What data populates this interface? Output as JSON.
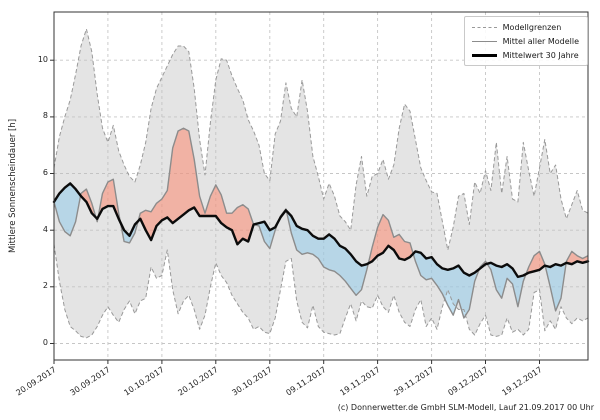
{
  "figure": {
    "y_axis_label": "Mittlere Sonnenscheindauer [h]",
    "caption": "(c) Donnerwetter.de GmbH SLM-Modell, Lauf 21.09.2017 00 Uhr",
    "legend": {
      "items": [
        {
          "label": "Modellgrenzen",
          "style": "dashed-gray"
        },
        {
          "label": "Mittel aller Modelle",
          "style": "solid-gray"
        },
        {
          "label": "Mittelwert 30 Jahre",
          "style": "solid-black-thick"
        }
      ]
    }
  },
  "chart_data": {
    "type": "line",
    "title": "",
    "xlabel": "",
    "ylabel": "Mittlere Sonnenscheindauer [h]",
    "ylim": [
      -0.6,
      11.7
    ],
    "yticks": [
      0,
      2,
      4,
      6,
      8,
      10
    ],
    "grid": true,
    "legend_position": "top-right",
    "x_days": 100,
    "x_start_date": "20.09.2017",
    "x_tick_days": [
      0,
      10,
      20,
      30,
      40,
      50,
      60,
      70,
      80,
      90
    ],
    "x_tick_labels": [
      "20.09.2017",
      "30.09.2017",
      "10.10.2017",
      "20.10.2017",
      "30.10.2017",
      "09.11.2017",
      "19.11.2017",
      "29.11.2017",
      "09.12.2017",
      "19.12.2017"
    ],
    "fills": {
      "envelope_color": "#e3e3e3",
      "above_mean_color": "#f2b3a5",
      "below_mean_color": "#b7d7e8"
    },
    "series": [
      {
        "name": "Modellgrenzen (obere Grenze)",
        "role": "upper_bound",
        "color": "#999999",
        "style": "dashed",
        "values": [
          6.2,
          7.3,
          8.0,
          8.6,
          9.5,
          10.5,
          11.1,
          10.3,
          8.8,
          7.6,
          7.1,
          7.7,
          6.8,
          6.3,
          5.9,
          5.7,
          6.3,
          7.1,
          8.3,
          9.0,
          9.4,
          9.8,
          10.2,
          10.5,
          10.5,
          10.3,
          9.0,
          7.2,
          5.95,
          7.8,
          9.3,
          10.05,
          10.0,
          9.45,
          9.0,
          8.6,
          7.9,
          7.5,
          7.0,
          6.0,
          5.75,
          7.4,
          7.85,
          9.2,
          8.3,
          8.0,
          9.3,
          8.2,
          6.6,
          5.9,
          5.1,
          5.65,
          5.2,
          4.5,
          4.3,
          4.0,
          5.6,
          6.6,
          5.2,
          5.9,
          6.0,
          6.5,
          5.8,
          6.3,
          7.6,
          8.45,
          8.2,
          7.2,
          6.2,
          5.75,
          5.35,
          5.3,
          4.3,
          3.3,
          4.1,
          5.2,
          5.3,
          4.2,
          5.7,
          5.3,
          6.1,
          5.4,
          7.1,
          5.3,
          6.6,
          5.1,
          5.0,
          7.1,
          6.1,
          5.2,
          6.2,
          7.2,
          6.0,
          6.3,
          5.1,
          4.4,
          4.9,
          5.4,
          4.7,
          4.6
        ]
      },
      {
        "name": "Modellgrenzen (untere Grenze)",
        "role": "lower_bound",
        "color": "#999999",
        "style": "dashed",
        "values": [
          3.5,
          2.2,
          1.2,
          0.6,
          0.45,
          0.25,
          0.2,
          0.3,
          0.6,
          1.0,
          1.3,
          1.0,
          0.75,
          1.2,
          1.5,
          1.05,
          1.5,
          1.6,
          2.7,
          2.3,
          2.4,
          3.3,
          1.9,
          1.05,
          1.5,
          1.7,
          1.2,
          0.5,
          1.0,
          2.0,
          2.85,
          2.4,
          2.15,
          1.7,
          1.4,
          1.1,
          0.9,
          0.5,
          0.6,
          0.4,
          0.35,
          0.9,
          1.9,
          2.9,
          3.0,
          1.5,
          0.75,
          0.55,
          1.35,
          0.6,
          0.4,
          0.35,
          0.3,
          0.35,
          0.9,
          1.4,
          0.8,
          1.5,
          1.3,
          1.25,
          1.7,
          1.3,
          1.1,
          1.7,
          1.1,
          0.75,
          0.6,
          1.2,
          1.55,
          0.6,
          0.9,
          0.5,
          1.3,
          1.9,
          1.4,
          1.2,
          1.2,
          0.5,
          0.3,
          0.7,
          1.0,
          0.3,
          0.25,
          0.3,
          0.9,
          0.4,
          0.5,
          0.3,
          0.5,
          1.8,
          1.9,
          0.45,
          0.8,
          0.5,
          1.3,
          0.9,
          0.7,
          0.9,
          0.8,
          0.9
        ]
      },
      {
        "name": "Mittel aller Modelle",
        "role": "model_mean",
        "color": "#8c8c8c",
        "style": "solid",
        "values": [
          5.0,
          4.3,
          3.95,
          3.8,
          4.3,
          5.3,
          5.45,
          4.95,
          4.3,
          5.3,
          5.7,
          5.8,
          4.6,
          3.6,
          3.55,
          3.9,
          4.6,
          4.7,
          4.65,
          4.95,
          5.1,
          5.4,
          6.9,
          7.5,
          7.6,
          7.5,
          6.5,
          5.2,
          4.6,
          5.2,
          5.6,
          5.25,
          4.6,
          4.6,
          4.8,
          4.9,
          4.75,
          4.2,
          4.15,
          3.6,
          3.35,
          4.0,
          4.5,
          4.75,
          3.9,
          3.3,
          3.15,
          3.2,
          3.15,
          3.0,
          2.7,
          2.6,
          2.55,
          2.4,
          2.2,
          1.95,
          1.7,
          1.9,
          2.6,
          3.4,
          4.1,
          4.55,
          4.35,
          3.75,
          3.85,
          3.6,
          3.55,
          2.9,
          2.4,
          2.25,
          2.3,
          2.05,
          1.75,
          1.35,
          1.0,
          1.55,
          0.9,
          1.2,
          2.2,
          2.7,
          2.9,
          2.6,
          1.9,
          1.6,
          2.3,
          2.1,
          1.3,
          2.2,
          2.7,
          3.1,
          3.25,
          2.8,
          2.0,
          1.15,
          1.6,
          2.9,
          3.25,
          3.1,
          3.0,
          3.1
        ]
      },
      {
        "name": "Mittelwert 30 Jahre",
        "role": "mean_30y",
        "color": "#000000",
        "style": "solid-thick",
        "values": [
          5.0,
          5.3,
          5.5,
          5.65,
          5.45,
          5.2,
          5.0,
          4.6,
          4.4,
          4.75,
          4.85,
          4.85,
          4.4,
          4.0,
          3.8,
          4.2,
          4.4,
          4.0,
          3.65,
          4.15,
          4.35,
          4.45,
          4.25,
          4.4,
          4.55,
          4.7,
          4.8,
          4.5,
          4.5,
          4.5,
          4.5,
          4.25,
          4.1,
          4.0,
          3.5,
          3.7,
          3.6,
          4.2,
          4.25,
          4.3,
          4.0,
          4.1,
          4.45,
          4.7,
          4.5,
          4.15,
          4.05,
          4.0,
          3.8,
          3.7,
          3.7,
          3.85,
          3.7,
          3.45,
          3.35,
          3.15,
          2.9,
          2.75,
          2.8,
          2.9,
          3.1,
          3.2,
          3.45,
          3.3,
          3.0,
          2.95,
          3.05,
          3.25,
          3.2,
          3.0,
          3.05,
          2.8,
          2.65,
          2.6,
          2.65,
          2.75,
          2.5,
          2.4,
          2.5,
          2.65,
          2.8,
          2.85,
          2.75,
          2.7,
          2.8,
          2.65,
          2.35,
          2.4,
          2.5,
          2.55,
          2.6,
          2.75,
          2.7,
          2.8,
          2.75,
          2.85,
          2.8,
          2.9,
          2.85,
          2.9
        ]
      }
    ],
    "caption": "(c) Donnerwetter.de GmbH SLM-Modell, Lauf 21.09.2017 00 Uhr"
  }
}
